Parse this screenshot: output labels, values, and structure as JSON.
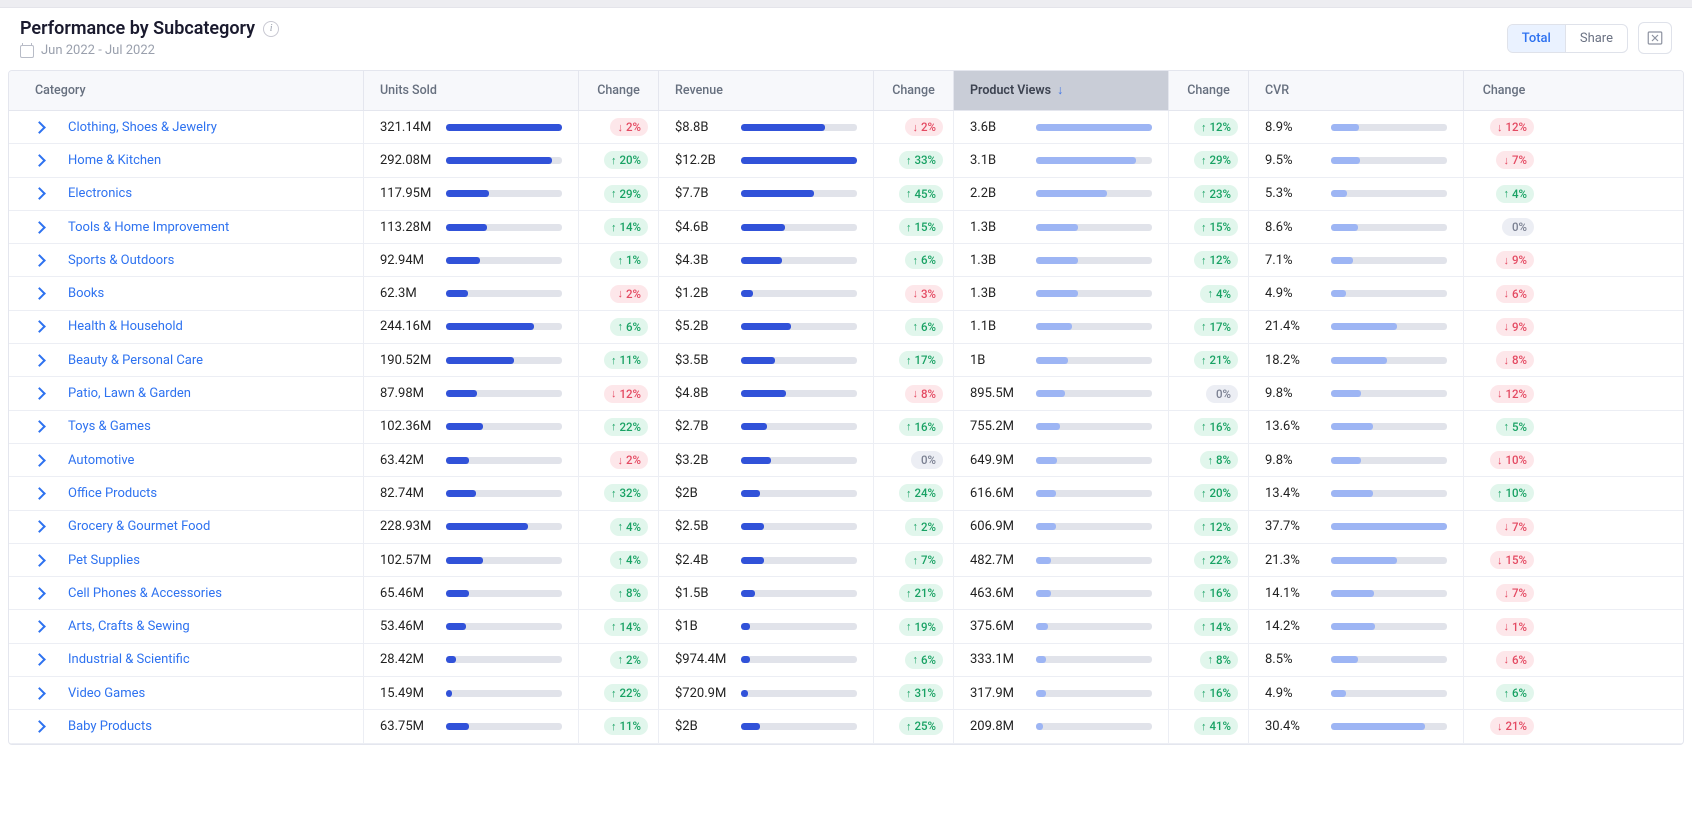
{
  "header": {
    "title": "Performance by Subcategory",
    "date_range": "Jun 2022 - Jul 2022",
    "view_toggle": {
      "total": "Total",
      "share": "Share",
      "selected": "total"
    }
  },
  "colors": {
    "bar_dark": "#3152d9",
    "bar_light": "#9db5f4",
    "link": "#2e72f0"
  },
  "columns": [
    {
      "key": "category",
      "label": "Category"
    },
    {
      "key": "units",
      "label": "Units Sold"
    },
    {
      "key": "units_chg",
      "label": "Change"
    },
    {
      "key": "revenue",
      "label": "Revenue"
    },
    {
      "key": "rev_chg",
      "label": "Change"
    },
    {
      "key": "views",
      "label": "Product Views",
      "sorted": "desc"
    },
    {
      "key": "views_chg",
      "label": "Change"
    },
    {
      "key": "cvr",
      "label": "CVR"
    },
    {
      "key": "cvr_chg",
      "label": "Change"
    }
  ],
  "rows": [
    {
      "category": "Clothing, Shoes & Jewelry",
      "units": "321.14M",
      "units_bar": 1.0,
      "units_chg": {
        "dir": "down",
        "pct": "2%"
      },
      "revenue": "$8.8B",
      "rev_bar": 0.72,
      "rev_chg": {
        "dir": "down",
        "pct": "2%"
      },
      "views": "3.6B",
      "views_bar": 1.0,
      "views_chg": {
        "dir": "up",
        "pct": "12%"
      },
      "cvr": "8.9%",
      "cvr_bar": 0.24,
      "cvr_chg": {
        "dir": "down",
        "pct": "12%"
      }
    },
    {
      "category": "Home & Kitchen",
      "units": "292.08M",
      "units_bar": 0.91,
      "units_chg": {
        "dir": "up",
        "pct": "20%"
      },
      "revenue": "$12.2B",
      "rev_bar": 1.0,
      "rev_chg": {
        "dir": "up",
        "pct": "33%"
      },
      "views": "3.1B",
      "views_bar": 0.86,
      "views_chg": {
        "dir": "up",
        "pct": "29%"
      },
      "cvr": "9.5%",
      "cvr_bar": 0.25,
      "cvr_chg": {
        "dir": "down",
        "pct": "7%"
      }
    },
    {
      "category": "Electronics",
      "units": "117.95M",
      "units_bar": 0.37,
      "units_chg": {
        "dir": "up",
        "pct": "29%"
      },
      "revenue": "$7.7B",
      "rev_bar": 0.63,
      "rev_chg": {
        "dir": "up",
        "pct": "45%"
      },
      "views": "2.2B",
      "views_bar": 0.61,
      "views_chg": {
        "dir": "up",
        "pct": "23%"
      },
      "cvr": "5.3%",
      "cvr_bar": 0.14,
      "cvr_chg": {
        "dir": "up",
        "pct": "4%"
      }
    },
    {
      "category": "Tools & Home Improvement",
      "units": "113.28M",
      "units_bar": 0.35,
      "units_chg": {
        "dir": "up",
        "pct": "14%"
      },
      "revenue": "$4.6B",
      "rev_bar": 0.38,
      "rev_chg": {
        "dir": "up",
        "pct": "15%"
      },
      "views": "1.3B",
      "views_bar": 0.36,
      "views_chg": {
        "dir": "up",
        "pct": "15%"
      },
      "cvr": "8.6%",
      "cvr_bar": 0.23,
      "cvr_chg": {
        "dir": "flat",
        "pct": "0%"
      }
    },
    {
      "category": "Sports & Outdoors",
      "units": "92.94M",
      "units_bar": 0.29,
      "units_chg": {
        "dir": "up",
        "pct": "1%"
      },
      "revenue": "$4.3B",
      "rev_bar": 0.35,
      "rev_chg": {
        "dir": "up",
        "pct": "6%"
      },
      "views": "1.3B",
      "views_bar": 0.36,
      "views_chg": {
        "dir": "up",
        "pct": "12%"
      },
      "cvr": "7.1%",
      "cvr_bar": 0.19,
      "cvr_chg": {
        "dir": "down",
        "pct": "9%"
      }
    },
    {
      "category": "Books",
      "units": "62.3M",
      "units_bar": 0.19,
      "units_chg": {
        "dir": "down",
        "pct": "2%"
      },
      "revenue": "$1.2B",
      "rev_bar": 0.1,
      "rev_chg": {
        "dir": "down",
        "pct": "3%"
      },
      "views": "1.3B",
      "views_bar": 0.36,
      "views_chg": {
        "dir": "up",
        "pct": "4%"
      },
      "cvr": "4.9%",
      "cvr_bar": 0.13,
      "cvr_chg": {
        "dir": "down",
        "pct": "6%"
      }
    },
    {
      "category": "Health & Household",
      "units": "244.16M",
      "units_bar": 0.76,
      "units_chg": {
        "dir": "up",
        "pct": "6%"
      },
      "revenue": "$5.2B",
      "rev_bar": 0.43,
      "rev_chg": {
        "dir": "up",
        "pct": "6%"
      },
      "views": "1.1B",
      "views_bar": 0.31,
      "views_chg": {
        "dir": "up",
        "pct": "17%"
      },
      "cvr": "21.4%",
      "cvr_bar": 0.57,
      "cvr_chg": {
        "dir": "down",
        "pct": "9%"
      }
    },
    {
      "category": "Beauty & Personal Care",
      "units": "190.52M",
      "units_bar": 0.59,
      "units_chg": {
        "dir": "up",
        "pct": "11%"
      },
      "revenue": "$3.5B",
      "rev_bar": 0.29,
      "rev_chg": {
        "dir": "up",
        "pct": "17%"
      },
      "views": "1B",
      "views_bar": 0.28,
      "views_chg": {
        "dir": "up",
        "pct": "21%"
      },
      "cvr": "18.2%",
      "cvr_bar": 0.48,
      "cvr_chg": {
        "dir": "down",
        "pct": "8%"
      }
    },
    {
      "category": "Patio, Lawn & Garden",
      "units": "87.98M",
      "units_bar": 0.27,
      "units_chg": {
        "dir": "down",
        "pct": "12%"
      },
      "revenue": "$4.8B",
      "rev_bar": 0.39,
      "rev_chg": {
        "dir": "down",
        "pct": "8%"
      },
      "views": "895.5M",
      "views_bar": 0.25,
      "views_chg": {
        "dir": "flat",
        "pct": "0%"
      },
      "cvr": "9.8%",
      "cvr_bar": 0.26,
      "cvr_chg": {
        "dir": "down",
        "pct": "12%"
      }
    },
    {
      "category": "Toys & Games",
      "units": "102.36M",
      "units_bar": 0.32,
      "units_chg": {
        "dir": "up",
        "pct": "22%"
      },
      "revenue": "$2.7B",
      "rev_bar": 0.22,
      "rev_chg": {
        "dir": "up",
        "pct": "16%"
      },
      "views": "755.2M",
      "views_bar": 0.21,
      "views_chg": {
        "dir": "up",
        "pct": "16%"
      },
      "cvr": "13.6%",
      "cvr_bar": 0.36,
      "cvr_chg": {
        "dir": "up",
        "pct": "5%"
      }
    },
    {
      "category": "Automotive",
      "units": "63.42M",
      "units_bar": 0.2,
      "units_chg": {
        "dir": "down",
        "pct": "2%"
      },
      "revenue": "$3.2B",
      "rev_bar": 0.26,
      "rev_chg": {
        "dir": "flat",
        "pct": "0%"
      },
      "views": "649.9M",
      "views_bar": 0.18,
      "views_chg": {
        "dir": "up",
        "pct": "8%"
      },
      "cvr": "9.8%",
      "cvr_bar": 0.26,
      "cvr_chg": {
        "dir": "down",
        "pct": "10%"
      }
    },
    {
      "category": "Office Products",
      "units": "82.74M",
      "units_bar": 0.26,
      "units_chg": {
        "dir": "up",
        "pct": "32%"
      },
      "revenue": "$2B",
      "rev_bar": 0.16,
      "rev_chg": {
        "dir": "up",
        "pct": "24%"
      },
      "views": "616.6M",
      "views_bar": 0.17,
      "views_chg": {
        "dir": "up",
        "pct": "20%"
      },
      "cvr": "13.4%",
      "cvr_bar": 0.36,
      "cvr_chg": {
        "dir": "up",
        "pct": "10%"
      }
    },
    {
      "category": "Grocery & Gourmet Food",
      "units": "228.93M",
      "units_bar": 0.71,
      "units_chg": {
        "dir": "up",
        "pct": "4%"
      },
      "revenue": "$2.5B",
      "rev_bar": 0.2,
      "rev_chg": {
        "dir": "up",
        "pct": "2%"
      },
      "views": "606.9M",
      "views_bar": 0.17,
      "views_chg": {
        "dir": "up",
        "pct": "12%"
      },
      "cvr": "37.7%",
      "cvr_bar": 1.0,
      "cvr_chg": {
        "dir": "down",
        "pct": "7%"
      }
    },
    {
      "category": "Pet Supplies",
      "units": "102.57M",
      "units_bar": 0.32,
      "units_chg": {
        "dir": "up",
        "pct": "4%"
      },
      "revenue": "$2.4B",
      "rev_bar": 0.2,
      "rev_chg": {
        "dir": "up",
        "pct": "7%"
      },
      "views": "482.7M",
      "views_bar": 0.13,
      "views_chg": {
        "dir": "up",
        "pct": "22%"
      },
      "cvr": "21.3%",
      "cvr_bar": 0.57,
      "cvr_chg": {
        "dir": "down",
        "pct": "15%"
      }
    },
    {
      "category": "Cell Phones & Accessories",
      "units": "65.46M",
      "units_bar": 0.2,
      "units_chg": {
        "dir": "up",
        "pct": "8%"
      },
      "revenue": "$1.5B",
      "rev_bar": 0.12,
      "rev_chg": {
        "dir": "up",
        "pct": "21%"
      },
      "views": "463.6M",
      "views_bar": 0.13,
      "views_chg": {
        "dir": "up",
        "pct": "16%"
      },
      "cvr": "14.1%",
      "cvr_bar": 0.37,
      "cvr_chg": {
        "dir": "down",
        "pct": "7%"
      }
    },
    {
      "category": "Arts, Crafts & Sewing",
      "units": "53.46M",
      "units_bar": 0.17,
      "units_chg": {
        "dir": "up",
        "pct": "14%"
      },
      "revenue": "$1B",
      "rev_bar": 0.08,
      "rev_chg": {
        "dir": "up",
        "pct": "19%"
      },
      "views": "375.6M",
      "views_bar": 0.1,
      "views_chg": {
        "dir": "up",
        "pct": "14%"
      },
      "cvr": "14.2%",
      "cvr_bar": 0.38,
      "cvr_chg": {
        "dir": "down",
        "pct": "1%"
      }
    },
    {
      "category": "Industrial & Scientific",
      "units": "28.42M",
      "units_bar": 0.09,
      "units_chg": {
        "dir": "up",
        "pct": "2%"
      },
      "revenue": "$974.4M",
      "rev_bar": 0.08,
      "rev_chg": {
        "dir": "up",
        "pct": "6%"
      },
      "views": "333.1M",
      "views_bar": 0.09,
      "views_chg": {
        "dir": "up",
        "pct": "8%"
      },
      "cvr": "8.5%",
      "cvr_bar": 0.23,
      "cvr_chg": {
        "dir": "down",
        "pct": "6%"
      }
    },
    {
      "category": "Video Games",
      "units": "15.49M",
      "units_bar": 0.05,
      "units_chg": {
        "dir": "up",
        "pct": "22%"
      },
      "revenue": "$720.9M",
      "rev_bar": 0.06,
      "rev_chg": {
        "dir": "up",
        "pct": "31%"
      },
      "views": "317.9M",
      "views_bar": 0.09,
      "views_chg": {
        "dir": "up",
        "pct": "16%"
      },
      "cvr": "4.9%",
      "cvr_bar": 0.13,
      "cvr_chg": {
        "dir": "up",
        "pct": "6%"
      }
    },
    {
      "category": "Baby Products",
      "units": "63.75M",
      "units_bar": 0.2,
      "units_chg": {
        "dir": "up",
        "pct": "11%"
      },
      "revenue": "$2B",
      "rev_bar": 0.16,
      "rev_chg": {
        "dir": "up",
        "pct": "25%"
      },
      "views": "209.8M",
      "views_bar": 0.06,
      "views_chg": {
        "dir": "up",
        "pct": "41%"
      },
      "cvr": "30.4%",
      "cvr_bar": 0.81,
      "cvr_chg": {
        "dir": "down",
        "pct": "21%"
      }
    }
  ]
}
